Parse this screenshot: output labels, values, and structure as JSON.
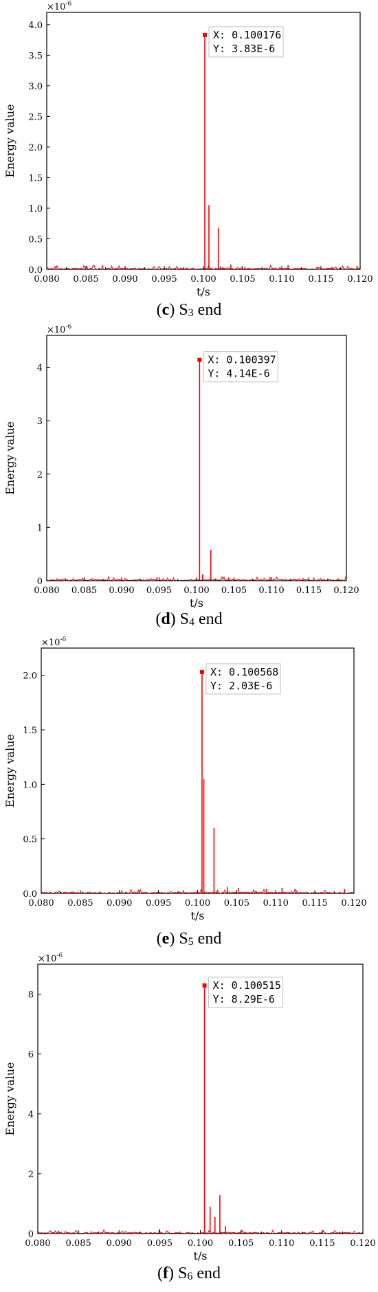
{
  "chart_data": [
    {
      "type": "line",
      "caption": {
        "letter": "c",
        "sensor": "S",
        "sub": "3",
        "suffix": " end"
      },
      "xlabel": "t/s",
      "ylabel": "Energy value",
      "multiplier_label": "×10",
      "multiplier_exp": "-6",
      "xlim": [
        0.08,
        0.12
      ],
      "ylim": [
        0,
        4.2
      ],
      "xticks": [
        "0.080",
        "0.085",
        "0.090",
        "0.095",
        "0.100",
        "0.105",
        "0.110",
        "0.115",
        "0.120"
      ],
      "yticks": [
        0,
        0.5,
        1.0,
        1.5,
        2.0,
        2.5,
        3.0,
        3.5,
        4.0
      ],
      "ytick_labels": [
        "0.0",
        "0.5",
        "1.0",
        "1.5",
        "2.0",
        "2.5",
        "3.0",
        "3.5",
        "4.0"
      ],
      "spikes": [
        [
          0.100176,
          3.83
        ],
        [
          0.1007,
          1.05
        ],
        [
          0.1019,
          0.68
        ],
        [
          0.1022,
          0.05
        ],
        [
          0.1035,
          0.08
        ],
        [
          0.1053,
          0.04
        ],
        [
          0.1108,
          0.07
        ],
        [
          0.1164,
          0.04
        ],
        [
          0.1196,
          0.06
        ]
      ],
      "datatip": {
        "x_label": "X: 0.100176",
        "y_label": "Y: 3.83E-6",
        "x": 0.100176,
        "y": 3.83
      },
      "series_color": "#ff0000"
    },
    {
      "type": "line",
      "caption": {
        "letter": "d",
        "sensor": "S",
        "sub": "4",
        "suffix": " end"
      },
      "xlabel": "t/s",
      "ylabel": "Energy value",
      "multiplier_label": "×10",
      "multiplier_exp": "-6",
      "xlim": [
        0.08,
        0.12
      ],
      "ylim": [
        0,
        4.6
      ],
      "xticks": [
        "0.080",
        "0.085",
        "0.090",
        "0.095",
        "0.100",
        "0.105",
        "0.110",
        "0.115",
        "0.120"
      ],
      "yticks": [
        0,
        1,
        2,
        3,
        4
      ],
      "ytick_labels": [
        "0",
        "1",
        "2",
        "3",
        "4"
      ],
      "spikes": [
        [
          0.100397,
          4.14
        ],
        [
          0.1008,
          0.12
        ],
        [
          0.1019,
          0.58
        ],
        [
          0.1043,
          0.06
        ],
        [
          0.1098,
          0.07
        ],
        [
          0.1142,
          0.05
        ],
        [
          0.1189,
          0.04
        ]
      ],
      "datatip": {
        "x_label": "X: 0.100397",
        "y_label": "Y: 4.14E-6",
        "x": 0.100397,
        "y": 4.14
      },
      "series_color": "#ff0000"
    },
    {
      "type": "line",
      "caption": {
        "letter": "e",
        "sensor": "S",
        "sub": "5",
        "suffix": " end"
      },
      "xlabel": "t/s",
      "ylabel": "Energy value",
      "multiplier_label": "×10",
      "multiplier_exp": "-6",
      "xlim": [
        0.08,
        0.12
      ],
      "ylim": [
        0,
        2.25
      ],
      "xticks": [
        "0.080",
        "0.085",
        "0.090",
        "0.095",
        "0.100",
        "0.105",
        "0.110",
        "0.115",
        "0.120"
      ],
      "yticks": [
        0,
        0.5,
        1.0,
        1.5,
        2.0
      ],
      "ytick_labels": [
        "0.0",
        "0.5",
        "1.0",
        "1.5",
        "2.0"
      ],
      "spikes": [
        [
          0.100568,
          2.03
        ],
        [
          0.1008,
          1.05
        ],
        [
          0.1021,
          0.6
        ],
        [
          0.1038,
          0.06
        ],
        [
          0.1052,
          0.05
        ],
        [
          0.1088,
          0.04
        ],
        [
          0.1108,
          0.05
        ],
        [
          0.1188,
          0.04
        ]
      ],
      "datatip": {
        "x_label": "X: 0.100568",
        "y_label": "Y: 2.03E-6",
        "x": 0.100568,
        "y": 2.03
      },
      "series_color": "#ff0000"
    },
    {
      "type": "line",
      "caption": {
        "letter": "f",
        "sensor": "S",
        "sub": "6",
        "suffix": " end"
      },
      "xlabel": "t/s",
      "ylabel": "Energy value",
      "multiplier_label": "×10",
      "multiplier_exp": "-6",
      "xlim": [
        0.08,
        0.12
      ],
      "ylim": [
        0,
        9.0
      ],
      "xticks": [
        "0.080",
        "0.085",
        "0.090",
        "0.095",
        "0.100",
        "0.105",
        "0.110",
        "0.115",
        "0.120"
      ],
      "yticks": [
        0,
        2,
        4,
        6,
        8
      ],
      "ytick_labels": [
        "0",
        "2",
        "4",
        "6",
        "8"
      ],
      "spikes": [
        [
          0.100515,
          8.29
        ],
        [
          0.1012,
          0.9
        ],
        [
          0.1018,
          0.55
        ],
        [
          0.1024,
          1.28
        ],
        [
          0.1031,
          0.25
        ],
        [
          0.1054,
          0.06
        ],
        [
          0.1108,
          0.05
        ],
        [
          0.1172,
          0.04
        ]
      ],
      "datatip": {
        "x_label": "X: 0.100515",
        "y_label": "Y: 8.29E-6",
        "x": 0.100515,
        "y": 8.29
      },
      "series_color": "#ff0000"
    }
  ]
}
